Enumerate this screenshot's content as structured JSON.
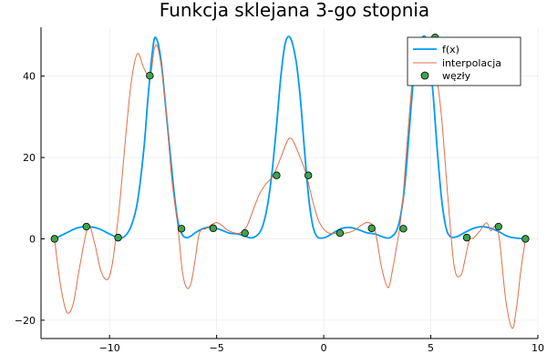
{
  "chart_data": {
    "type": "line",
    "title": "Funkcja sklejana 3-go stopnia",
    "xlabel": "",
    "ylabel": "",
    "xlim": [
      -13.2,
      10.0
    ],
    "ylim": [
      -24.5,
      52.0
    ],
    "x_ticks": [
      -10,
      -5,
      0,
      5,
      10
    ],
    "x_tick_labels": [
      "−10",
      "−5",
      "0",
      "5",
      "10"
    ],
    "y_ticks": [
      -20,
      0,
      20,
      40
    ],
    "y_tick_labels": [
      "−20",
      "0",
      "20",
      "40"
    ],
    "grid": true,
    "legend_position": "top-right",
    "colors": {
      "fx": "#009af9",
      "interp": "#e26f46",
      "nodes": "#3da44d"
    },
    "series": [
      {
        "name": "f(x)",
        "kind": "line",
        "x": [
          -12.57,
          -12.0,
          -11.5,
          -11.0,
          -10.5,
          -10.0,
          -9.6,
          -9.3,
          -9.0,
          -8.7,
          -8.4,
          -8.2,
          -8.0,
          -7.85,
          -7.6,
          -7.3,
          -7.0,
          -6.8,
          -6.6,
          -6.4,
          -6.2,
          -6.0,
          -5.6,
          -5.2,
          -4.8,
          -4.4,
          -4.0,
          -3.6,
          -3.3,
          -3.0,
          -2.8,
          -2.6,
          -2.4,
          -2.2,
          -2.0,
          -1.8,
          -1.57,
          -1.3,
          -1.1,
          -0.9,
          -0.7,
          -0.5,
          -0.3,
          -0.1,
          0.1,
          0.4,
          0.8,
          1.2,
          1.6,
          2.0,
          2.4,
          2.8,
          3.1,
          3.4,
          3.6,
          3.8,
          4.0,
          4.2,
          4.4,
          4.6,
          4.75,
          4.9,
          5.1,
          5.3,
          5.5,
          5.7,
          5.9,
          6.2,
          6.6,
          7.0,
          7.4,
          7.8,
          8.2,
          8.6,
          9.0,
          9.42
        ],
        "y": [
          0,
          1.5,
          2.7,
          3.0,
          2.5,
          1.2,
          0.3,
          0.6,
          3.0,
          9.0,
          22,
          35,
          46,
          49.5,
          44,
          28,
          12,
          4,
          1.0,
          0.3,
          0.7,
          1.5,
          2.6,
          2.8,
          2.2,
          1.4,
          1.2,
          0.5,
          0.3,
          1.5,
          4,
          9,
          17,
          28,
          40,
          48,
          49.5,
          44,
          35,
          22,
          10,
          3,
          0.5,
          0.2,
          0.4,
          1.3,
          2.5,
          2.8,
          2.3,
          1.5,
          1.2,
          0.4,
          0.3,
          2,
          6,
          14,
          27,
          40,
          47,
          49.5,
          49.5,
          46,
          36,
          22,
          10,
          3,
          0.6,
          0.5,
          1.6,
          2.6,
          3,
          2.6,
          1.7,
          0.6,
          0.2,
          0
        ]
      },
      {
        "name": "interpolacja",
        "kind": "line",
        "x": [
          -12.57,
          -12.3,
          -12.0,
          -11.7,
          -11.4,
          -11.0,
          -10.7,
          -10.4,
          -10.1,
          -9.9,
          -9.7,
          -9.5,
          -9.3,
          -9.0,
          -8.7,
          -8.4,
          -8.1,
          -7.9,
          -7.7,
          -7.4,
          -7.1,
          -6.8,
          -6.6,
          -6.4,
          -6.2,
          -6.0,
          -5.8,
          -5.5,
          -5.2,
          -5.0,
          -4.8,
          -4.5,
          -4.2,
          -3.93,
          -3.6,
          -3.3,
          -3.0,
          -2.7,
          -2.36,
          -2.0,
          -1.57,
          -1.1,
          -0.8,
          -0.5,
          -0.2,
          0.2,
          0.63,
          1.0,
          1.4,
          1.8,
          2.1,
          2.4,
          2.7,
          3.0,
          3.2,
          3.4,
          3.54,
          3.7,
          3.9,
          4.2,
          4.5,
          4.7,
          4.9,
          5.2,
          5.5,
          5.8,
          6.1,
          6.4,
          6.6,
          6.8,
          7.0,
          7.3,
          7.6,
          7.8,
          8.0,
          8.2,
          8.5,
          8.8,
          9.0,
          9.2,
          9.42
        ],
        "y": [
          0,
          -11,
          -18,
          -16,
          -7,
          3,
          -1,
          -8,
          -10,
          -7,
          0.5,
          10,
          22,
          38,
          45.5,
          42,
          40,
          47,
          46,
          34,
          15,
          2.5,
          -8,
          -12,
          -11,
          -5,
          1.5,
          2.5,
          3.6,
          4,
          3.5,
          2.2,
          1.5,
          1.4,
          3,
          7,
          11,
          13.5,
          15.5,
          20,
          24.8,
          20,
          15.5,
          9,
          4,
          1.5,
          1.4,
          1.4,
          2,
          3.5,
          4,
          2,
          -7,
          -12,
          -8,
          -2,
          2.5,
          10,
          24,
          42,
          48,
          48,
          46,
          42,
          30,
          10,
          -7,
          -9,
          -5,
          -0.3,
          0.2,
          2,
          4,
          2,
          3,
          0,
          -15,
          -22,
          -17,
          -8,
          0
        ]
      },
      {
        "name": "węzły",
        "kind": "scatter",
        "x": [
          -12.57,
          -11.08,
          -9.6,
          -8.12,
          -6.64,
          -5.16,
          -3.68,
          -2.2,
          -0.72,
          0.76,
          2.24,
          3.72,
          5.2,
          6.68,
          8.16,
          9.42
        ],
        "y": [
          0,
          3.0,
          0.3,
          40.1,
          2.5,
          2.6,
          1.4,
          15.6,
          15.6,
          1.4,
          2.6,
          2.5,
          49.5,
          0.3,
          3.0,
          0
        ]
      }
    ]
  }
}
